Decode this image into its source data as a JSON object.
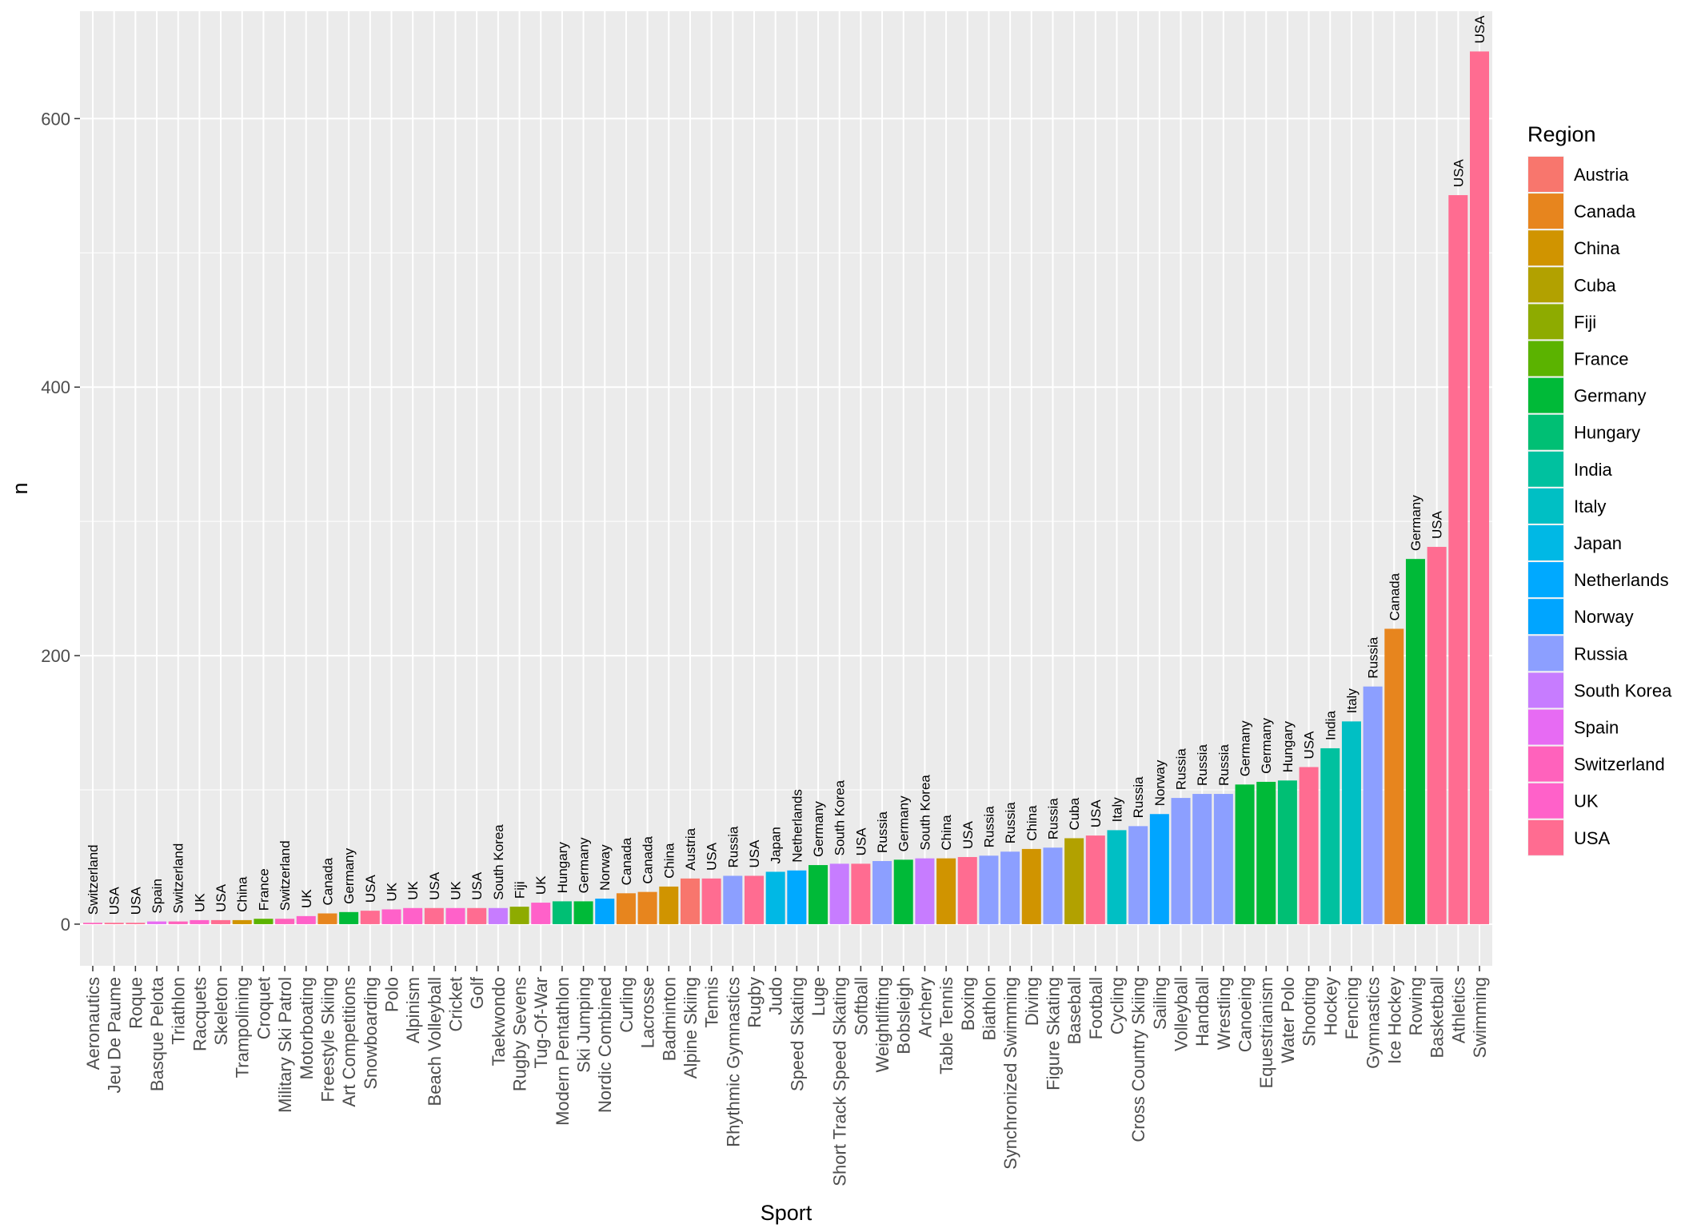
{
  "chart_data": {
    "type": "bar",
    "xlabel": "Sport",
    "ylabel": "n",
    "ylim": [
      -31,
      680
    ],
    "yticks": [
      0,
      200,
      400,
      600
    ],
    "grid": true,
    "legend": {
      "title": "Region",
      "position": "right",
      "entries": [
        "Austria",
        "Canada",
        "China",
        "Cuba",
        "Fiji",
        "France",
        "Germany",
        "Hungary",
        "India",
        "Italy",
        "Japan",
        "Netherlands",
        "Norway",
        "Russia",
        "South Korea",
        "Spain",
        "Switzerland",
        "UK",
        "USA"
      ]
    },
    "region_colors": {
      "Austria": "#F8766D",
      "Canada": "#E7851E",
      "China": "#D09400",
      "Cuba": "#B2A100",
      "Fiji": "#8EAB00",
      "France": "#5BB300",
      "Germany": "#00BA38",
      "Hungary": "#00BF74",
      "India": "#00C19F",
      "Italy": "#00BFC4",
      "Japan": "#00B8E5",
      "Netherlands": "#00A9FF",
      "Norway": "#00A5FF",
      "Russia": "#8C9FFF",
      "South Korea": "#C77CFF",
      "Spain": "#E76BF3",
      "Switzerland": "#FF62BC",
      "UK": "#FF61C9",
      "USA": "#FF6C91"
    },
    "bars": [
      {
        "sport": "Aeronautics",
        "region": "Switzerland",
        "value": 1
      },
      {
        "sport": "Jeu De Paume",
        "region": "USA",
        "value": 1
      },
      {
        "sport": "Roque",
        "region": "USA",
        "value": 1
      },
      {
        "sport": "Basque Pelota",
        "region": "Spain",
        "value": 2
      },
      {
        "sport": "Triathlon",
        "region": "Switzerland",
        "value": 2
      },
      {
        "sport": "Racquets",
        "region": "UK",
        "value": 3
      },
      {
        "sport": "Skeleton",
        "region": "USA",
        "value": 3
      },
      {
        "sport": "Trampolining",
        "region": "China",
        "value": 3
      },
      {
        "sport": "Croquet",
        "region": "France",
        "value": 4
      },
      {
        "sport": "Military Ski Patrol",
        "region": "Switzerland",
        "value": 4
      },
      {
        "sport": "Motorboating",
        "region": "UK",
        "value": 6
      },
      {
        "sport": "Freestyle Skiing",
        "region": "Canada",
        "value": 8
      },
      {
        "sport": "Art Competitions",
        "region": "Germany",
        "value": 9
      },
      {
        "sport": "Snowboarding",
        "region": "USA",
        "value": 10
      },
      {
        "sport": "Polo",
        "region": "UK",
        "value": 11
      },
      {
        "sport": "Alpinism",
        "region": "UK",
        "value": 12
      },
      {
        "sport": "Beach Volleyball",
        "region": "USA",
        "value": 12
      },
      {
        "sport": "Cricket",
        "region": "UK",
        "value": 12
      },
      {
        "sport": "Golf",
        "region": "USA",
        "value": 12
      },
      {
        "sport": "Taekwondo",
        "region": "South Korea",
        "value": 12
      },
      {
        "sport": "Rugby Sevens",
        "region": "Fiji",
        "value": 13
      },
      {
        "sport": "Tug-Of-War",
        "region": "UK",
        "value": 16
      },
      {
        "sport": "Modern Pentathlon",
        "region": "Hungary",
        "value": 17
      },
      {
        "sport": "Ski Jumping",
        "region": "Germany",
        "value": 17
      },
      {
        "sport": "Nordic Combined",
        "region": "Norway",
        "value": 19
      },
      {
        "sport": "Curling",
        "region": "Canada",
        "value": 23
      },
      {
        "sport": "Lacrosse",
        "region": "Canada",
        "value": 24
      },
      {
        "sport": "Badminton",
        "region": "China",
        "value": 28
      },
      {
        "sport": "Alpine Skiing",
        "region": "Austria",
        "value": 34
      },
      {
        "sport": "Tennis",
        "region": "USA",
        "value": 34
      },
      {
        "sport": "Rhythmic Gymnastics",
        "region": "Russia",
        "value": 36
      },
      {
        "sport": "Rugby",
        "region": "USA",
        "value": 36
      },
      {
        "sport": "Judo",
        "region": "Japan",
        "value": 39
      },
      {
        "sport": "Speed Skating",
        "region": "Netherlands",
        "value": 40
      },
      {
        "sport": "Luge",
        "region": "Germany",
        "value": 44
      },
      {
        "sport": "Short Track Speed Skating",
        "region": "South Korea",
        "value": 45
      },
      {
        "sport": "Softball",
        "region": "USA",
        "value": 45
      },
      {
        "sport": "Weightlifting",
        "region": "Russia",
        "value": 47
      },
      {
        "sport": "Bobsleigh",
        "region": "Germany",
        "value": 48
      },
      {
        "sport": "Archery",
        "region": "South Korea",
        "value": 49
      },
      {
        "sport": "Table Tennis",
        "region": "China",
        "value": 49
      },
      {
        "sport": "Boxing",
        "region": "USA",
        "value": 50
      },
      {
        "sport": "Biathlon",
        "region": "Russia",
        "value": 51
      },
      {
        "sport": "Synchronized Swimming",
        "region": "Russia",
        "value": 54
      },
      {
        "sport": "Diving",
        "region": "China",
        "value": 56
      },
      {
        "sport": "Figure Skating",
        "region": "Russia",
        "value": 57
      },
      {
        "sport": "Baseball",
        "region": "Cuba",
        "value": 64
      },
      {
        "sport": "Football",
        "region": "USA",
        "value": 66
      },
      {
        "sport": "Cycling",
        "region": "Italy",
        "value": 70
      },
      {
        "sport": "Cross Country Skiing",
        "region": "Russia",
        "value": 73
      },
      {
        "sport": "Sailing",
        "region": "Norway",
        "value": 82
      },
      {
        "sport": "Volleyball",
        "region": "Russia",
        "value": 94
      },
      {
        "sport": "Handball",
        "region": "Russia",
        "value": 97
      },
      {
        "sport": "Wrestling",
        "region": "Russia",
        "value": 97
      },
      {
        "sport": "Canoeing",
        "region": "Germany",
        "value": 104
      },
      {
        "sport": "Equestrianism",
        "region": "Germany",
        "value": 106
      },
      {
        "sport": "Water Polo",
        "region": "Hungary",
        "value": 107
      },
      {
        "sport": "Shooting",
        "region": "USA",
        "value": 117
      },
      {
        "sport": "Hockey",
        "region": "India",
        "value": 131
      },
      {
        "sport": "Fencing",
        "region": "Italy",
        "value": 151
      },
      {
        "sport": "Gymnastics",
        "region": "Russia",
        "value": 177
      },
      {
        "sport": "Ice Hockey",
        "region": "Canada",
        "value": 220
      },
      {
        "sport": "Rowing",
        "region": "Germany",
        "value": 272
      },
      {
        "sport": "Basketball",
        "region": "USA",
        "value": 281
      },
      {
        "sport": "Athletics",
        "region": "USA",
        "value": 543
      },
      {
        "sport": "Swimming",
        "region": "USA",
        "value": 650
      }
    ]
  }
}
